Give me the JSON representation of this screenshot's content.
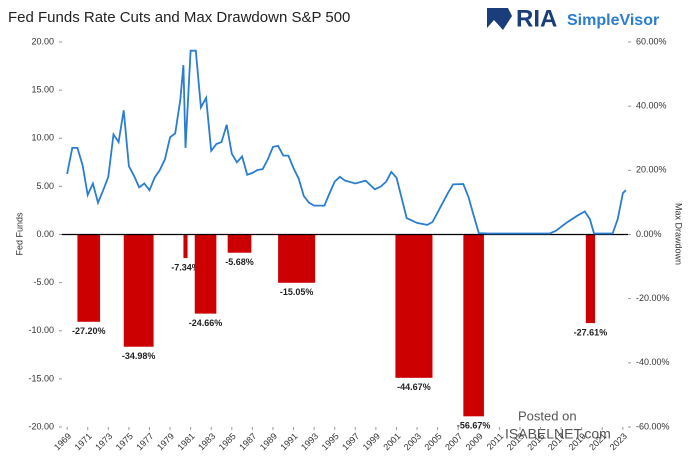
{
  "chart_data": {
    "type": "line-bar",
    "title": "Fed Funds Rate Cuts and Max Drawdown S&P 500",
    "ylabel": "Fed Funds",
    "y2label": "Max Drawdown",
    "xlim": [
      1968.5,
      2023.5
    ],
    "xticks": [
      1969,
      1971,
      1973,
      1975,
      1977,
      1979,
      1981,
      1983,
      1985,
      1987,
      1989,
      1991,
      1993,
      1995,
      1997,
      1999,
      2001,
      2003,
      2005,
      2007,
      2009,
      2011,
      2013,
      2015,
      2017,
      2019,
      2021,
      2023
    ],
    "ylim": [
      -20,
      20
    ],
    "yticks": [
      {
        "value": -20,
        "label": "-20.00"
      },
      {
        "value": -15,
        "label": "-15.00"
      },
      {
        "value": -10,
        "label": "-10.00"
      },
      {
        "value": -5,
        "label": "-5.00"
      },
      {
        "value": 0,
        "label": "0.00"
      },
      {
        "value": 5,
        "label": "5.00"
      },
      {
        "value": 10,
        "label": "10.00"
      },
      {
        "value": 15,
        "label": "15.00"
      },
      {
        "value": 20,
        "label": "20.00"
      }
    ],
    "y2lim": [
      -60,
      60
    ],
    "y2ticks": [
      {
        "value": -60,
        "label": "-60.00%"
      },
      {
        "value": -40,
        "label": "-40.00%"
      },
      {
        "value": -20,
        "label": "-20.00%"
      },
      {
        "value": 0,
        "label": "0.00%"
      },
      {
        "value": 20,
        "label": "20.00%"
      },
      {
        "value": 40,
        "label": "40.00%"
      },
      {
        "value": 60,
        "label": "60.00%"
      }
    ],
    "series": [
      {
        "type": "line",
        "color": "#2a7dd1",
        "x": [
          1969.0,
          1969.5,
          1970.0,
          1970.5,
          1971.0,
          1971.5,
          1972.0,
          1972.5,
          1973.0,
          1973.5,
          1974.0,
          1974.5,
          1975.0,
          1975.5,
          1976.0,
          1976.5,
          1977.0,
          1977.5,
          1978.0,
          1978.5,
          1979.0,
          1979.5,
          1980.0,
          1980.3,
          1980.5,
          1981.0,
          1981.5,
          1982.0,
          1982.5,
          1983.0,
          1983.5,
          1984.0,
          1984.5,
          1985.0,
          1985.5,
          1986.0,
          1986.5,
          1987.0,
          1987.5,
          1988.0,
          1988.5,
          1989.0,
          1989.5,
          1990.0,
          1990.5,
          1991.0,
          1991.5,
          1992.0,
          1992.5,
          1993.0,
          1994.0,
          1994.5,
          1995.0,
          1995.5,
          1996.0,
          1997.0,
          1998.0,
          1998.9,
          1999.5,
          2000.0,
          2000.5,
          2001.0,
          2001.5,
          2002.0,
          2003.0,
          2004.0,
          2004.5,
          2005.0,
          2006.0,
          2006.5,
          2007.5,
          2008.0,
          2008.5,
          2009.0,
          2010.0,
          2015.9,
          2016.5,
          2017.5,
          2018.5,
          2019.3,
          2019.8,
          2020.2,
          2022.0,
          2022.5,
          2023.0,
          2023.3
        ],
        "values": [
          6.3,
          9.0,
          9.0,
          7.2,
          4.1,
          5.3,
          3.3,
          4.6,
          6.0,
          10.4,
          9.6,
          12.9,
          7.1,
          6.1,
          4.9,
          5.3,
          4.6,
          5.9,
          6.7,
          7.8,
          10.1,
          10.5,
          14.0,
          17.6,
          9.0,
          19.1,
          19.1,
          13.2,
          14.2,
          8.7,
          9.4,
          9.6,
          11.4,
          8.4,
          7.5,
          8.1,
          6.2,
          6.4,
          6.7,
          6.8,
          7.8,
          9.1,
          9.2,
          8.2,
          8.2,
          6.9,
          5.8,
          4.0,
          3.3,
          3.0,
          3.0,
          4.3,
          5.5,
          6.0,
          5.6,
          5.3,
          5.6,
          4.7,
          5.0,
          5.5,
          6.5,
          5.9,
          3.8,
          1.7,
          1.2,
          1.0,
          1.3,
          2.3,
          4.3,
          5.2,
          5.25,
          3.9,
          2.0,
          0.15,
          0.1,
          0.1,
          0.4,
          1.2,
          1.9,
          2.4,
          1.6,
          0.1,
          0.1,
          1.6,
          4.3,
          4.6
        ]
      },
      {
        "type": "bar",
        "axis": "y2",
        "color": "#cc0000",
        "x_start": [
          1970.0,
          1974.5,
          1980.3,
          1981.4,
          1984.6,
          1989.5,
          2000.9,
          2007.5,
          2019.4
        ],
        "x_end": [
          1972.2,
          1977.4,
          1980.7,
          1983.5,
          1986.9,
          1993.1,
          2004.5,
          2009.5,
          2020.3
        ],
        "values": [
          -27.2,
          -34.98,
          -7.34,
          -24.66,
          -5.68,
          -15.05,
          -44.67,
          -56.67,
          -27.61
        ],
        "value_labels": [
          "-27.20%",
          "-34.98%",
          "-7.34%",
          "-24.66%",
          "-5.68%",
          "-15.05%",
          "-44.67%",
          "-56.67%",
          "-27.61%"
        ]
      }
    ]
  },
  "logo": {
    "brand": "RIA",
    "product": "SimpleVisor"
  },
  "watermark": {
    "line1": "Posted on",
    "line2": "ISABELNET.com"
  }
}
